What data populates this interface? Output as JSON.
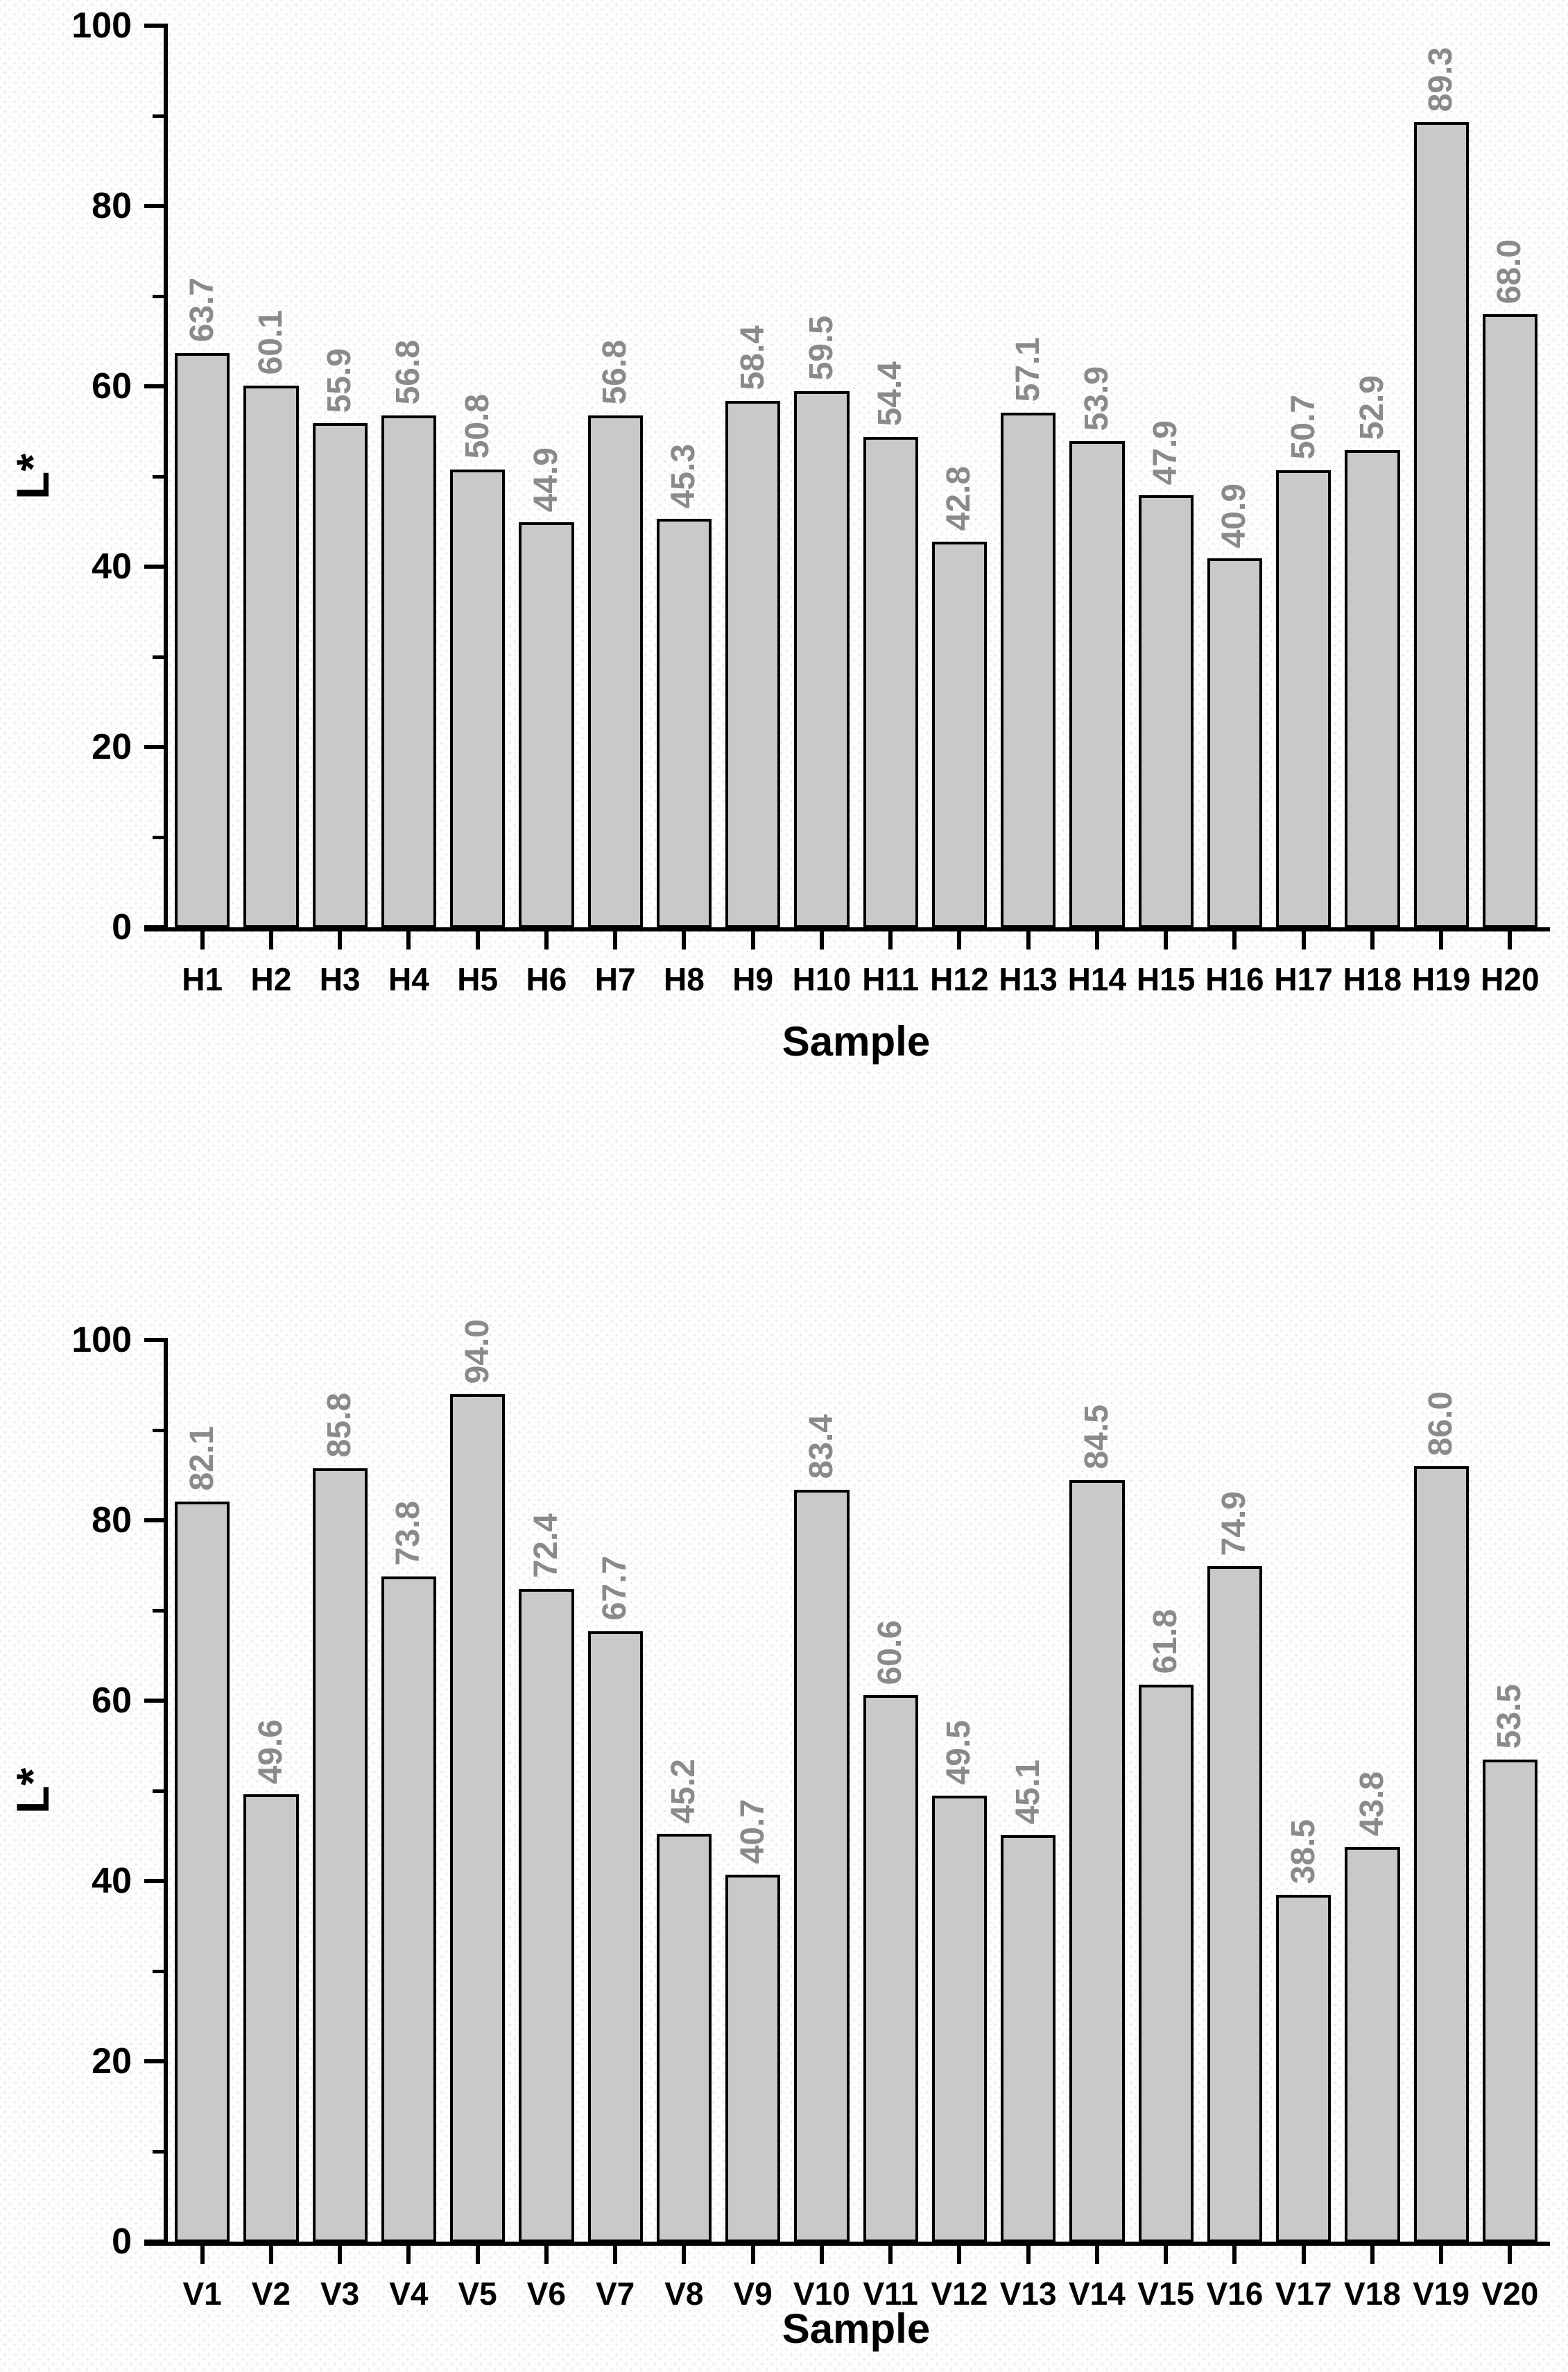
{
  "figure": {
    "background_color": "#fdfdfd",
    "dot_pattern_colors": [
      "#e2e8f2",
      "#f4e9e3"
    ]
  },
  "style": {
    "bar_fill": "#c9c9c9",
    "bar_border": "#000000",
    "value_label_color": "#8a8a8a",
    "axis_color": "#000000",
    "tick_label_color": "#000000"
  },
  "chart_data": [
    {
      "type": "bar",
      "title": "",
      "xlabel": "Sample",
      "ylabel": "L*",
      "ylim": [
        0,
        100
      ],
      "ytick_major": [
        0,
        20,
        40,
        60,
        80,
        100
      ],
      "ytick_minor": [
        10,
        30,
        50,
        70,
        90
      ],
      "grid": false,
      "legend": null,
      "value_labels": "rotated-90-above-bars",
      "categories": [
        "H1",
        "H2",
        "H3",
        "H4",
        "H5",
        "H6",
        "H7",
        "H8",
        "H9",
        "H10",
        "H11",
        "H12",
        "H13",
        "H14",
        "H15",
        "H16",
        "H17",
        "H18",
        "H19",
        "H20"
      ],
      "values": [
        63.7,
        60.1,
        55.9,
        56.8,
        50.8,
        44.9,
        56.8,
        45.3,
        58.4,
        59.5,
        54.4,
        42.8,
        57.1,
        53.9,
        47.9,
        40.9,
        50.7,
        52.9,
        89.3,
        68.0
      ]
    },
    {
      "type": "bar",
      "title": "",
      "xlabel": "Sample",
      "ylabel": "L*",
      "ylim": [
        0,
        100
      ],
      "ytick_major": [
        0,
        20,
        40,
        60,
        80,
        100
      ],
      "ytick_minor": [
        10,
        30,
        50,
        70,
        90
      ],
      "grid": false,
      "legend": null,
      "value_labels": "rotated-90-above-bars",
      "categories": [
        "V1",
        "V2",
        "V3",
        "V4",
        "V5",
        "V6",
        "V7",
        "V8",
        "V9",
        "V10",
        "V11",
        "V12",
        "V13",
        "V14",
        "V15",
        "V16",
        "V17",
        "V18",
        "V19",
        "V20"
      ],
      "values": [
        82.1,
        49.6,
        85.8,
        73.8,
        94.0,
        72.4,
        67.7,
        45.2,
        40.7,
        83.4,
        60.6,
        49.5,
        45.1,
        84.5,
        61.8,
        74.9,
        38.5,
        43.8,
        86.0,
        53.5
      ]
    }
  ]
}
